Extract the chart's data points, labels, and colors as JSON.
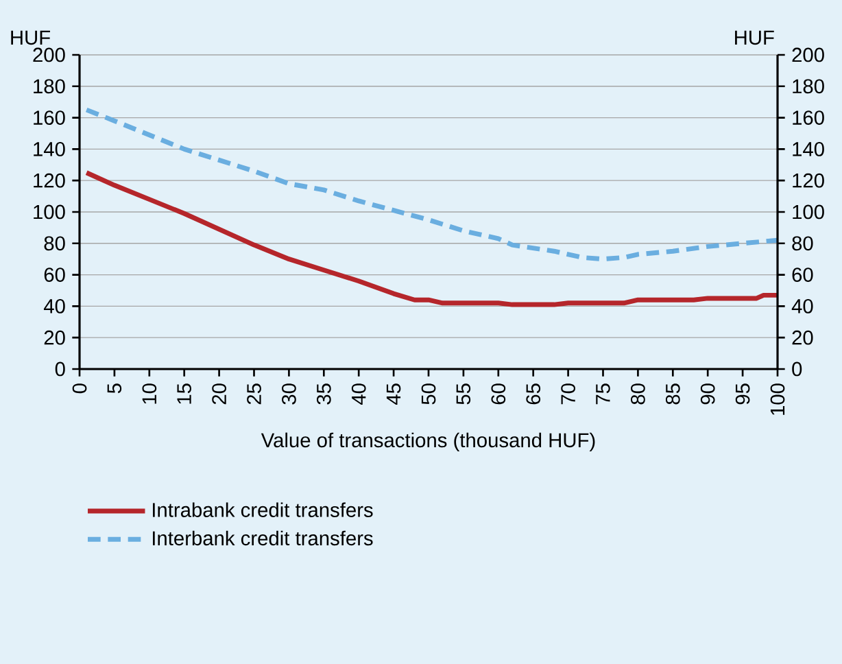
{
  "chart_data": {
    "type": "line",
    "ylabel": "HUF",
    "y2label": "HUF",
    "xlabel": "Value of transactions (thousand HUF)",
    "xlim": [
      0,
      100
    ],
    "xticks": [
      0,
      5,
      10,
      15,
      20,
      25,
      30,
      35,
      40,
      45,
      50,
      55,
      60,
      65,
      70,
      75,
      80,
      85,
      90,
      95,
      100
    ],
    "ylim": [
      0,
      200
    ],
    "yticks": [
      0,
      20,
      40,
      60,
      80,
      100,
      120,
      140,
      160,
      180,
      200
    ],
    "y2lim": [
      0,
      200
    ],
    "y2ticks": [
      0,
      20,
      40,
      60,
      80,
      100,
      120,
      140,
      160,
      180,
      200
    ],
    "grid": "y",
    "legend": "bottom",
    "marker": "none",
    "series": [
      {
        "name": "Intrabank credit transfers",
        "color": "#b5262b",
        "line_style": "solid",
        "x": [
          1,
          5,
          10,
          15,
          20,
          25,
          30,
          35,
          40,
          45,
          48,
          50,
          52,
          60,
          62,
          68,
          70,
          78,
          80,
          88,
          90,
          97,
          98,
          100
        ],
        "values": [
          125,
          117,
          108,
          99,
          89,
          79,
          70,
          63,
          56,
          48,
          44,
          44,
          42,
          42,
          41,
          41,
          42,
          42,
          44,
          44,
          45,
          45,
          47,
          47
        ]
      },
      {
        "name": "Interbank credit transfers",
        "color": "#6aaee0",
        "line_style": "dashed",
        "x": [
          1,
          5,
          10,
          15,
          20,
          25,
          30,
          35,
          40,
          45,
          50,
          55,
          60,
          62,
          65,
          68,
          72,
          75,
          78,
          80,
          85,
          90,
          95,
          100
        ],
        "values": [
          165,
          158,
          149,
          140,
          133,
          126,
          118,
          114,
          107,
          101,
          95,
          88,
          83,
          79,
          77,
          75,
          71,
          70,
          71,
          73,
          75,
          78,
          80,
          82
        ]
      }
    ]
  }
}
